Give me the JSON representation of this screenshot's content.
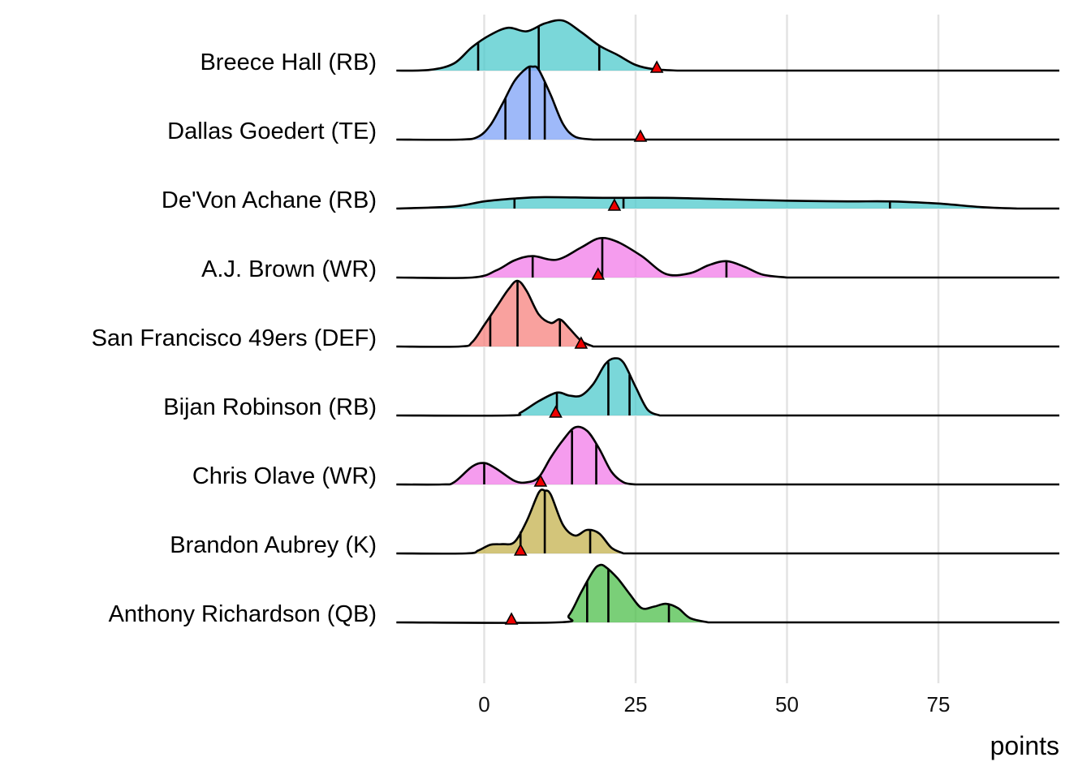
{
  "chart_data": {
    "type": "ridgeline",
    "title": "",
    "xlabel": "points",
    "ylabel": "",
    "xlim": [
      -14.5,
      94
    ],
    "x_ticks": [
      0,
      25,
      50,
      75
    ],
    "x_tick_labels": [
      "0",
      "25",
      "50",
      "75"
    ],
    "grid": true,
    "legend": "none",
    "marker": "red triangle",
    "players": [
      {
        "name": "Breece Hall (RB)",
        "color": "#4dc9cc",
        "density": [
          [
            -14.5,
            0
          ],
          [
            -9,
            0.01
          ],
          [
            -5,
            0.1
          ],
          [
            -2,
            0.33
          ],
          [
            1,
            0.5
          ],
          [
            4,
            0.6
          ],
          [
            7,
            0.55
          ],
          [
            10,
            0.66
          ],
          [
            13,
            0.7
          ],
          [
            16,
            0.54
          ],
          [
            19,
            0.35
          ],
          [
            22,
            0.22
          ],
          [
            25,
            0.08
          ],
          [
            28,
            0.02
          ],
          [
            32,
            0
          ]
        ],
        "quantiles": [
          -1,
          9,
          19
        ],
        "marker": 28.5
      },
      {
        "name": "Dallas Goedert (TE)",
        "color": "#7ea2f7",
        "density": [
          [
            -14.5,
            0
          ],
          [
            -4,
            0
          ],
          [
            -1,
            0.04
          ],
          [
            1,
            0.2
          ],
          [
            3,
            0.5
          ],
          [
            5,
            0.82
          ],
          [
            7,
            1.0
          ],
          [
            8,
            1.02
          ],
          [
            9,
            0.98
          ],
          [
            11,
            0.62
          ],
          [
            13,
            0.22
          ],
          [
            15,
            0.04
          ],
          [
            18,
            0
          ]
        ],
        "quantiles": [
          3.5,
          7.5,
          10
        ],
        "marker": 25.8
      },
      {
        "name": "De'Von Achane (RB)",
        "color": "#4dc9cc",
        "density": [
          [
            -14.5,
            0
          ],
          [
            -5,
            0.03
          ],
          [
            0,
            0.1
          ],
          [
            5,
            0.14
          ],
          [
            10,
            0.16
          ],
          [
            20,
            0.15
          ],
          [
            30,
            0.15
          ],
          [
            40,
            0.13
          ],
          [
            50,
            0.11
          ],
          [
            60,
            0.1
          ],
          [
            67,
            0.1
          ],
          [
            75,
            0.07
          ],
          [
            82,
            0.02
          ],
          [
            88,
            0
          ]
        ],
        "quantiles": [
          5,
          23,
          67
        ],
        "marker": 21.5
      },
      {
        "name": "A.J. Brown (WR)",
        "color": "#f27be8",
        "density": [
          [
            -14.5,
            0
          ],
          [
            -2,
            0
          ],
          [
            2,
            0.1
          ],
          [
            5,
            0.24
          ],
          [
            8,
            0.3
          ],
          [
            12,
            0.25
          ],
          [
            16,
            0.42
          ],
          [
            19,
            0.55
          ],
          [
            22,
            0.5
          ],
          [
            26,
            0.3
          ],
          [
            30,
            0.05
          ],
          [
            34,
            0.06
          ],
          [
            37,
            0.17
          ],
          [
            40,
            0.23
          ],
          [
            43,
            0.15
          ],
          [
            46,
            0.04
          ],
          [
            50,
            0
          ]
        ],
        "quantiles": [
          8,
          19.5,
          40
        ],
        "marker": 18.8
      },
      {
        "name": "San Francisco 49ers (DEF)",
        "color": "#f7827e",
        "density": [
          [
            -14.5,
            0
          ],
          [
            -4,
            0
          ],
          [
            -2,
            0.06
          ],
          [
            0,
            0.3
          ],
          [
            2,
            0.55
          ],
          [
            4,
            0.8
          ],
          [
            5.5,
            0.92
          ],
          [
            7,
            0.78
          ],
          [
            9,
            0.45
          ],
          [
            11,
            0.33
          ],
          [
            12.5,
            0.38
          ],
          [
            14,
            0.26
          ],
          [
            16,
            0.08
          ],
          [
            18,
            0
          ]
        ],
        "quantiles": [
          1,
          5.5,
          12.5
        ],
        "marker": 16
      },
      {
        "name": "Bijan Robinson (RB)",
        "color": "#4dc9cc",
        "density": [
          [
            -14.5,
            0
          ],
          [
            4,
            0
          ],
          [
            6,
            0.04
          ],
          [
            9,
            0.2
          ],
          [
            12,
            0.32
          ],
          [
            14,
            0.28
          ],
          [
            16,
            0.28
          ],
          [
            18,
            0.44
          ],
          [
            20,
            0.72
          ],
          [
            21.5,
            0.8
          ],
          [
            23,
            0.74
          ],
          [
            25,
            0.4
          ],
          [
            27,
            0.08
          ],
          [
            29,
            0
          ]
        ],
        "quantiles": [
          12,
          20.5,
          24
        ],
        "marker": 11.8
      },
      {
        "name": "Chris Olave (WR)",
        "color": "#f27be8",
        "density": [
          [
            -14.5,
            0
          ],
          [
            -7,
            0
          ],
          [
            -5,
            0.03
          ],
          [
            -2,
            0.25
          ],
          [
            0,
            0.3
          ],
          [
            2,
            0.22
          ],
          [
            5,
            0.05
          ],
          [
            7,
            0.03
          ],
          [
            9,
            0.1
          ],
          [
            11,
            0.38
          ],
          [
            13,
            0.62
          ],
          [
            15,
            0.8
          ],
          [
            17,
            0.75
          ],
          [
            19,
            0.5
          ],
          [
            21,
            0.18
          ],
          [
            23,
            0.03
          ],
          [
            25,
            0
          ]
        ],
        "quantiles": [
          0,
          14.5,
          18.5
        ],
        "marker": 9.3
      },
      {
        "name": "Brandon Aubrey (K)",
        "color": "#c4b14e",
        "density": [
          [
            -14.5,
            0
          ],
          [
            -3,
            0
          ],
          [
            -1,
            0.04
          ],
          [
            1,
            0.12
          ],
          [
            3,
            0.13
          ],
          [
            5,
            0.16
          ],
          [
            7,
            0.45
          ],
          [
            9,
            0.85
          ],
          [
            10,
            0.88
          ],
          [
            11,
            0.82
          ],
          [
            13,
            0.4
          ],
          [
            15,
            0.25
          ],
          [
            17,
            0.33
          ],
          [
            19,
            0.28
          ],
          [
            21,
            0.08
          ],
          [
            23,
            0
          ]
        ],
        "quantiles": [
          6,
          10,
          17.5
        ],
        "marker": 6
      },
      {
        "name": "Anthony Richardson (QB)",
        "color": "#4dbf4b",
        "density": [
          [
            -14.5,
            0
          ],
          [
            12,
            0
          ],
          [
            14,
            0.1
          ],
          [
            16,
            0.42
          ],
          [
            18,
            0.72
          ],
          [
            19,
            0.8
          ],
          [
            20,
            0.78
          ],
          [
            22,
            0.62
          ],
          [
            24,
            0.4
          ],
          [
            26,
            0.2
          ],
          [
            28,
            0.22
          ],
          [
            30,
            0.26
          ],
          [
            32,
            0.2
          ],
          [
            34,
            0.06
          ],
          [
            37,
            0
          ]
        ],
        "quantiles": [
          17,
          20.5,
          30.5
        ],
        "marker": 4.5
      }
    ]
  }
}
